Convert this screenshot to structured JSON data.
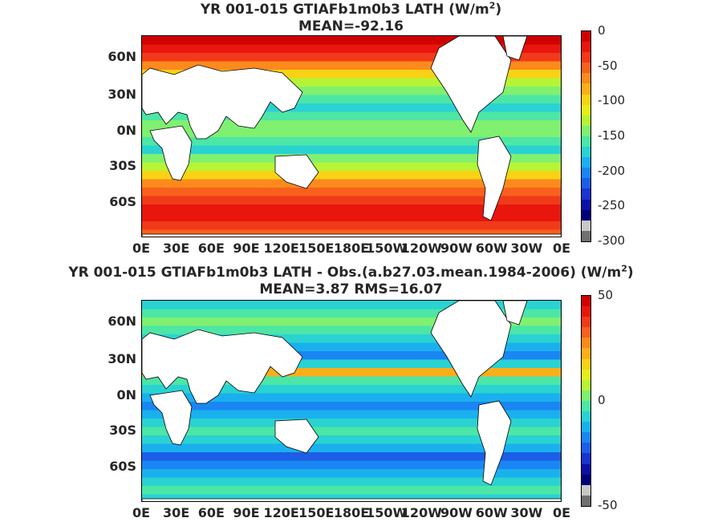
{
  "panels": [
    {
      "title_main": "YR 001-015 GTIAFb1m0b3  LATH (W/m",
      "title_sup": "2",
      "title_end": ")",
      "subtitle": "MEAN=-92.16",
      "colorbar_ticks": [
        "0",
        "-50",
        "-100",
        "-150",
        "-200",
        "-250",
        "-300"
      ],
      "colors": [
        "#d00000",
        "#e8160c",
        "#f03a1a",
        "#f8601e",
        "#fc8a1c",
        "#fcae1a",
        "#f8d214",
        "#e6ee1c",
        "#b6f436",
        "#80f070",
        "#4ce6a6",
        "#2ad2d2",
        "#1ab0ee",
        "#1a86f2",
        "#1c5ee6",
        "#1a34d0",
        "#0a10a8",
        "#00007a",
        "#c8c8c8",
        "#707070"
      ]
    },
    {
      "title_main": "YR 001-015 GTIAFb1m0b3 LATH - Obs.(a.b27.03.mean.1984-2006) (W/m",
      "title_sup": "2",
      "title_end": ")",
      "subtitle": "MEAN=3.87 RMS=16.07",
      "colorbar_ticks": [
        "50",
        "0",
        "-50"
      ],
      "colors": [
        "#d00000",
        "#e8160c",
        "#f03a1a",
        "#f8601e",
        "#fc8a1c",
        "#fcae1a",
        "#f8d214",
        "#e6ee1c",
        "#b6f436",
        "#80f070",
        "#4ce6a6",
        "#2ad2d2",
        "#1ab0ee",
        "#1a86f2",
        "#1c5ee6",
        "#1a34d0",
        "#0a10a8",
        "#00007a",
        "#c8c8c8",
        "#707070"
      ]
    }
  ],
  "y_axis_labels": [
    "60N",
    "30N",
    "0N",
    "30S",
    "60S"
  ],
  "x_axis_labels": [
    "0E",
    "30E",
    "60E",
    "90E",
    "120E",
    "150E",
    "180E",
    "150W",
    "120W",
    "90W",
    "60W",
    "30W",
    "0E"
  ]
}
